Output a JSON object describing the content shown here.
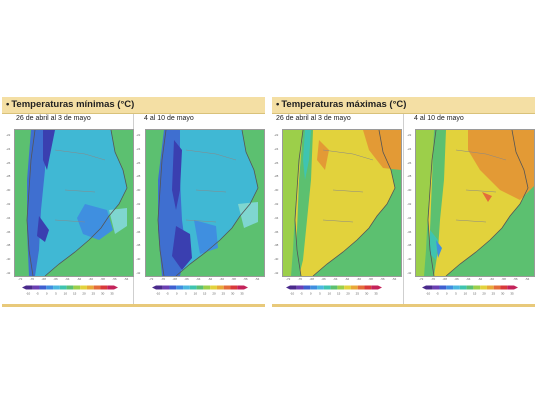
{
  "panels": [
    {
      "title": "Temperaturas mínimas (°C)",
      "periods": [
        {
          "label": "26 de abril al 3 de mayo",
          "map": "map-minimas-period-1"
        },
        {
          "label": "4 al 10 de mayo",
          "map": "map-minimas-period-2"
        }
      ]
    },
    {
      "title": "Temperaturas máximas (°C)",
      "periods": [
        {
          "label": "26 de abril al 3 de mayo",
          "map": "map-maximas-period-1"
        },
        {
          "label": "4 al 10 de mayo",
          "map": "map-maximas-period-2"
        }
      ]
    }
  ],
  "legend": {
    "colors": [
      "#4a2a8c",
      "#6a3fb4",
      "#3e5fd0",
      "#3f8fe0",
      "#4bb7e0",
      "#3fc4b0",
      "#5cc070",
      "#9ccf4a",
      "#e2d23c",
      "#e9a838",
      "#e46c3a",
      "#d93a3a",
      "#c4225a"
    ],
    "labels": [
      "-10",
      "-5",
      "0",
      "5",
      "10",
      "15",
      "20",
      "25",
      "30",
      "35"
    ]
  },
  "axes": {
    "y_ticks": [
      "-22",
      "-24",
      "-26",
      "-28",
      "-30",
      "-32",
      "-34",
      "-36",
      "-38",
      "-40",
      "-42"
    ],
    "x_ticks": [
      "-72",
      "-70",
      "-68",
      "-66",
      "-64",
      "-62",
      "-60",
      "-58",
      "-56",
      "-54"
    ]
  },
  "colors": {
    "header_bg": "#f4dfa4",
    "ocean": "#5cc070",
    "minimas_main": "#40b8d4",
    "minimas_cold": "#3f6fd0",
    "minimas_coldest": "#3a3fb0",
    "maximas_main": "#e2d23c",
    "maximas_warm": "#e39a35",
    "maximas_cool": "#9ccf4a"
  }
}
